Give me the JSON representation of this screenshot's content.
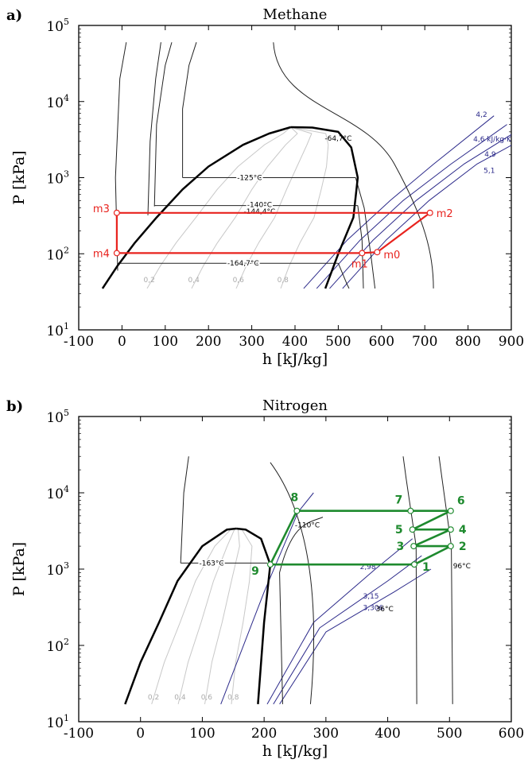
{
  "chart_data": [
    {
      "panel_label": "a)",
      "type": "line",
      "title": "Methane",
      "xlabel": "h [kJ/kg]",
      "ylabel": "P [kPa]",
      "xlim": [
        -100,
        900
      ],
      "ylim": [
        10,
        100000
      ],
      "y_scale": "log",
      "xticks": [
        "-100",
        "0",
        "100",
        "200",
        "300",
        "400",
        "500",
        "600",
        "700",
        "800",
        "900"
      ],
      "yticks": [
        {
          "base": "10",
          "exp": "1"
        },
        {
          "base": "10",
          "exp": "2"
        },
        {
          "base": "10",
          "exp": "3"
        },
        {
          "base": "10",
          "exp": "4"
        },
        {
          "base": "10",
          "exp": "5"
        }
      ],
      "cycle_color": "#e8231e",
      "cycle_points": [
        {
          "label": "m0",
          "h": 590,
          "p": 105
        },
        {
          "label": "m1",
          "h": 555,
          "p": 102
        },
        {
          "label": "m2",
          "h": 712,
          "p": 345
        },
        {
          "label": "m3",
          "h": -12,
          "p": 345
        },
        {
          "label": "m4",
          "h": -12,
          "p": 102
        }
      ],
      "cycle_path": [
        [
          -12,
          102
        ],
        [
          555,
          102
        ],
        [
          590,
          105
        ],
        [
          712,
          345
        ],
        [
          -12,
          345
        ],
        [
          -12,
          102
        ]
      ],
      "isotherm_labels": [
        "-64,7°C",
        "-125°C",
        "-140°C",
        "-144,4°C",
        "-164,7°C"
      ],
      "quality_labels": [
        "0,2",
        "0,4",
        "0,6",
        "0,8"
      ],
      "isentrope_labels": [
        "4,2",
        "4,6 kJ/kg·K",
        "4,9",
        "5,1"
      ]
    },
    {
      "panel_label": "b)",
      "type": "line",
      "title": "Nitrogen",
      "xlabel": "h [kJ/kg]",
      "ylabel": "P [kPa]",
      "xlim": [
        -100,
        600
      ],
      "ylim": [
        10,
        100000
      ],
      "y_scale": "log",
      "xticks": [
        "-100",
        "0",
        "100",
        "200",
        "300",
        "400",
        "500",
        "600"
      ],
      "yticks": [
        {
          "base": "10",
          "exp": "1"
        },
        {
          "base": "10",
          "exp": "2"
        },
        {
          "base": "10",
          "exp": "3"
        },
        {
          "base": "10",
          "exp": "4"
        },
        {
          "base": "10",
          "exp": "5"
        }
      ],
      "cycle_color": "#1e8a2e",
      "cycle_points": [
        {
          "label": "1",
          "h": 443,
          "p": 1150
        },
        {
          "label": "2",
          "h": 502,
          "p": 2000
        },
        {
          "label": "3",
          "h": 442,
          "p": 2000
        },
        {
          "label": "4",
          "h": 502,
          "p": 3300
        },
        {
          "label": "5",
          "h": 440,
          "p": 3300
        },
        {
          "label": "6",
          "h": 502,
          "p": 5800
        },
        {
          "label": "7",
          "h": 437,
          "p": 5800
        },
        {
          "label": "8",
          "h": 253,
          "p": 5800
        },
        {
          "label": "9",
          "h": 210,
          "p": 1150
        }
      ],
      "cycle_path": [
        [
          210,
          1150
        ],
        [
          443,
          1150
        ],
        [
          502,
          2000
        ],
        [
          442,
          2000
        ],
        [
          502,
          3300
        ],
        [
          440,
          3300
        ],
        [
          502,
          5800
        ],
        [
          253,
          5800
        ],
        [
          210,
          1150
        ]
      ],
      "isotherm_labels": [
        "-110°C",
        "-163°C",
        "36°C",
        "96°C"
      ],
      "quality_labels": [
        "0,2",
        "0,4",
        "0,6",
        "0,8"
      ],
      "isentrope_labels": [
        "2,98",
        "3,15",
        "3,306"
      ]
    }
  ]
}
